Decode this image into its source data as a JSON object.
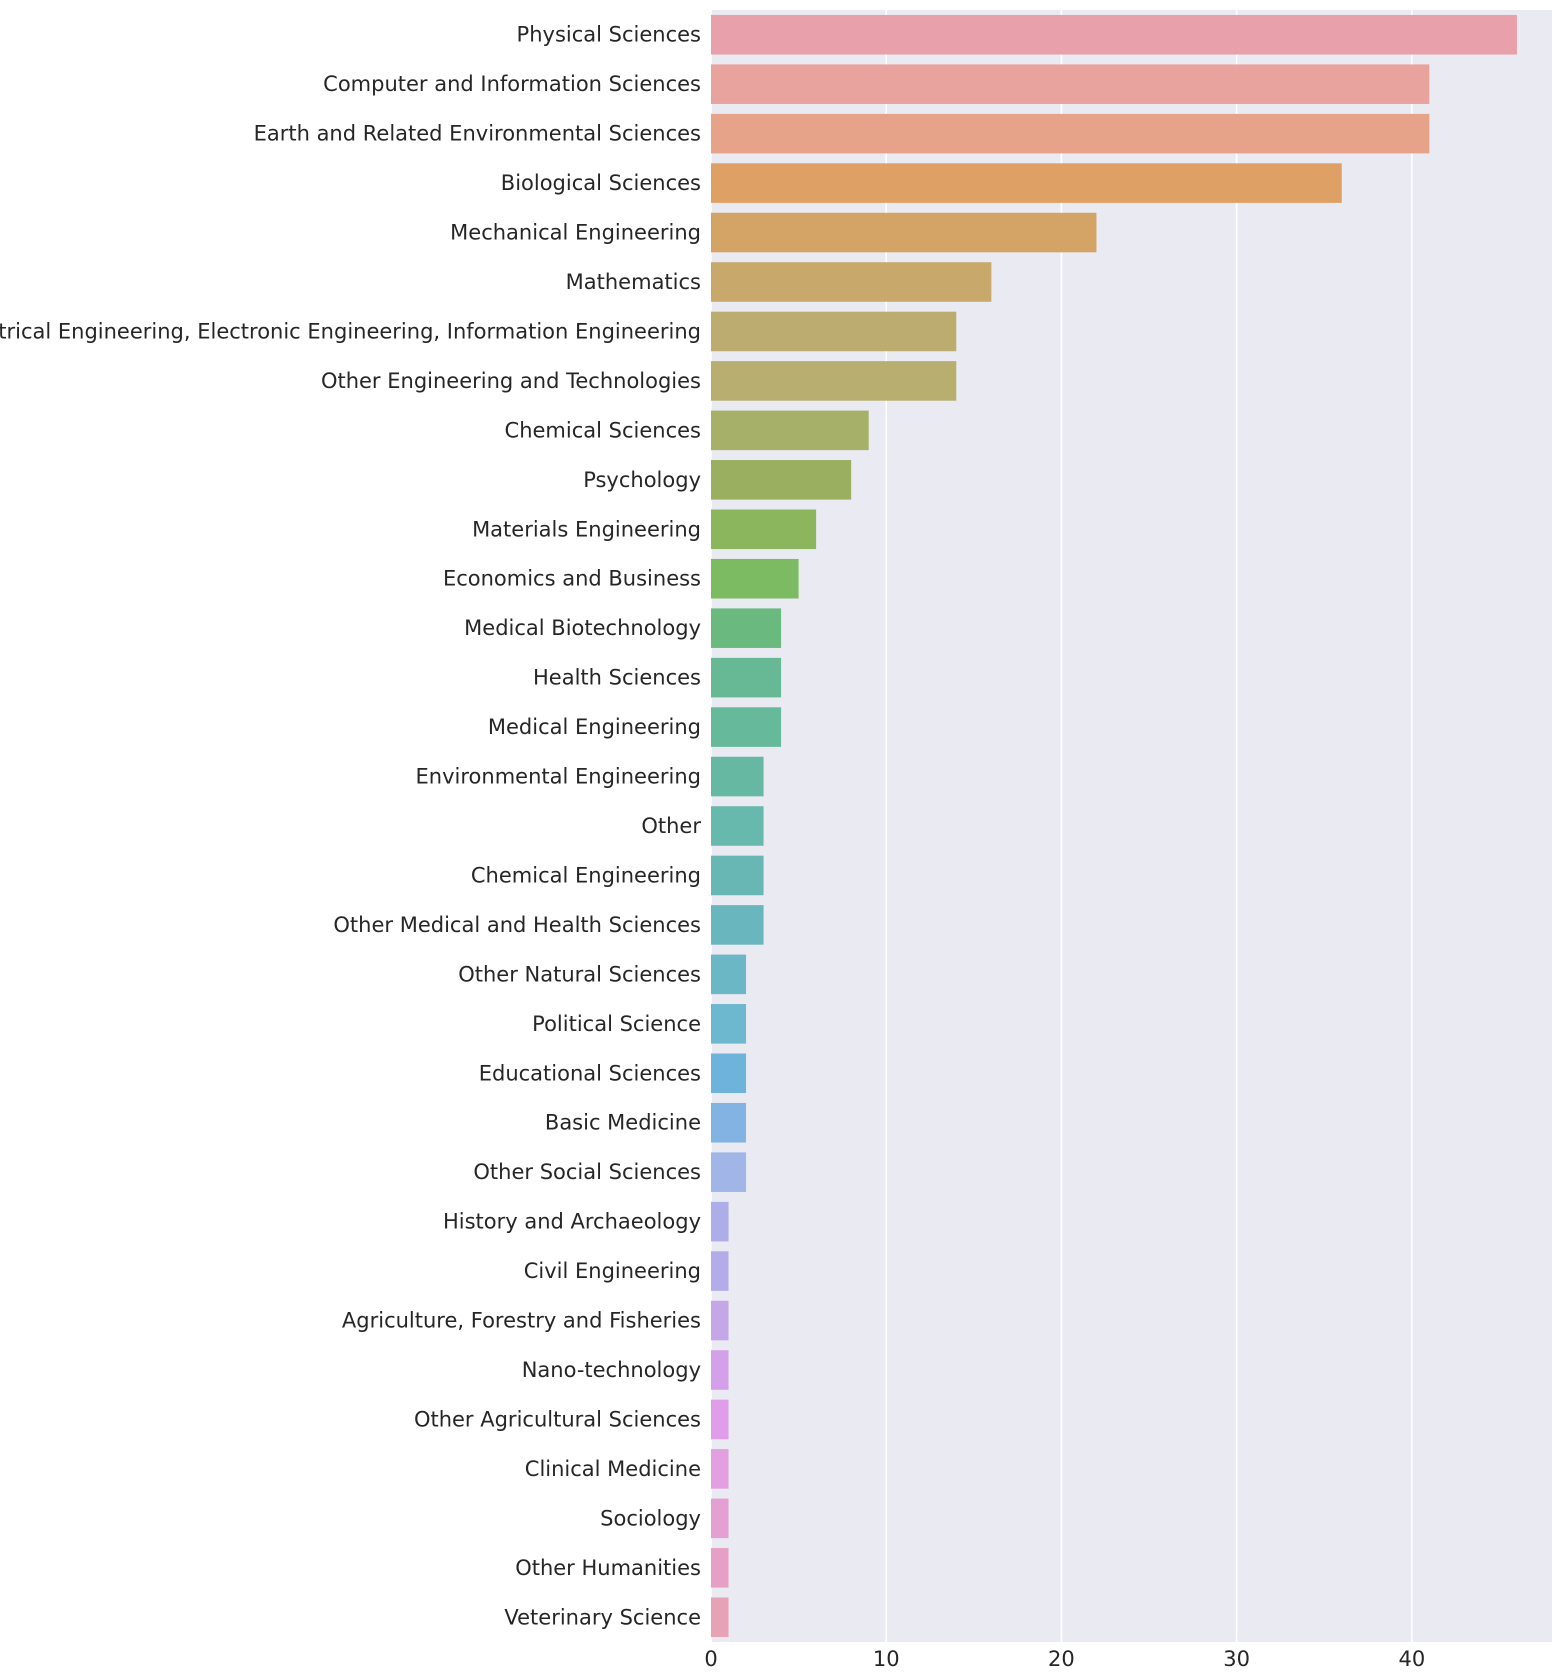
{
  "chart_data": {
    "type": "bar",
    "orientation": "horizontal",
    "title": "",
    "xlabel": "",
    "ylabel": "",
    "xlim": [
      0,
      48
    ],
    "xticks": [
      0,
      10,
      20,
      30,
      40
    ],
    "xtick_labels": [
      "0",
      "10",
      "20",
      "30",
      "40"
    ],
    "grid": true,
    "categories": [
      "Physical Sciences",
      "Computer and Information Sciences",
      "Earth and Related Environmental Sciences",
      "Biological Sciences",
      "Mechanical Engineering",
      "Mathematics",
      "Electrical Engineering, Electronic Engineering, Information Engineering",
      "Other Engineering and Technologies",
      "Chemical Sciences",
      "Psychology",
      "Materials Engineering",
      "Economics and Business",
      "Medical Biotechnology",
      "Health Sciences",
      "Medical Engineering",
      "Environmental Engineering",
      "Other",
      "Chemical Engineering",
      "Other Medical and Health Sciences",
      "Other Natural Sciences",
      "Political Science",
      "Educational Sciences",
      "Basic Medicine",
      "Other Social Sciences",
      "History and Archaeology",
      "Civil Engineering",
      "Agriculture, Forestry and Fisheries",
      "Nano-technology",
      "Other Agricultural Sciences",
      "Clinical Medicine",
      "Sociology",
      "Other Humanities",
      "Veterinary Science"
    ],
    "values": [
      46,
      41,
      41,
      36,
      22,
      16,
      14,
      14,
      9,
      8,
      6,
      5,
      4,
      4,
      4,
      3,
      3,
      3,
      3,
      2,
      2,
      2,
      2,
      2,
      1,
      1,
      1,
      1,
      1,
      1,
      1,
      1,
      1
    ],
    "colors": [
      "#e8a0aa",
      "#e8a39e",
      "#e6a389",
      "#dfa065",
      "#d3a465",
      "#c9a96b",
      "#bdac6f",
      "#b7ae6f",
      "#a6b068",
      "#9ab060",
      "#8cb65d",
      "#7cbb62",
      "#6aba80",
      "#67b996",
      "#67b99b",
      "#66b8a3",
      "#67b8ad",
      "#69b7b5",
      "#6ab6be",
      "#6cb7c6",
      "#6db7cf",
      "#6db3da",
      "#82b3e2",
      "#a2b5e7",
      "#adaee9",
      "#b4abea",
      "#c5a7e8",
      "#d5a0ea",
      "#df9dea",
      "#e39fe0",
      "#e49fd3",
      "#e7a0c5",
      "#e6a3b6"
    ],
    "plot_background": "#eaeaf2",
    "grid_color": "#ffffff"
  }
}
